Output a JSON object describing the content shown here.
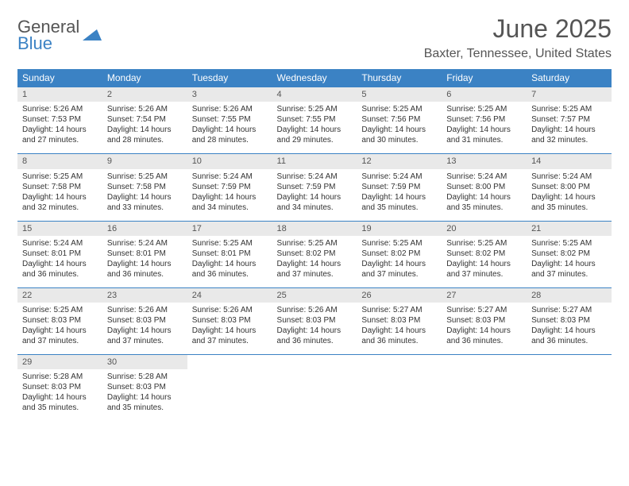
{
  "brand": {
    "line1": "General",
    "line2": "Blue",
    "color_gray": "#555555",
    "color_blue": "#3b82c4"
  },
  "title": "June 2025",
  "location": "Baxter, Tennessee, United States",
  "columns": [
    "Sunday",
    "Monday",
    "Tuesday",
    "Wednesday",
    "Thursday",
    "Friday",
    "Saturday"
  ],
  "header_bg": "#3b82c4",
  "header_fg": "#ffffff",
  "daynum_bg": "#e9e9e9",
  "border_color": "#3b82c4",
  "background_color": "#ffffff",
  "text_color": "#333333",
  "title_fontsize": 32,
  "location_fontsize": 16,
  "th_fontsize": 12,
  "cell_fontsize": 10,
  "days": [
    {
      "n": "1",
      "sunrise": "5:26 AM",
      "sunset": "7:53 PM",
      "dl": "14 hours and 27 minutes."
    },
    {
      "n": "2",
      "sunrise": "5:26 AM",
      "sunset": "7:54 PM",
      "dl": "14 hours and 28 minutes."
    },
    {
      "n": "3",
      "sunrise": "5:26 AM",
      "sunset": "7:55 PM",
      "dl": "14 hours and 28 minutes."
    },
    {
      "n": "4",
      "sunrise": "5:25 AM",
      "sunset": "7:55 PM",
      "dl": "14 hours and 29 minutes."
    },
    {
      "n": "5",
      "sunrise": "5:25 AM",
      "sunset": "7:56 PM",
      "dl": "14 hours and 30 minutes."
    },
    {
      "n": "6",
      "sunrise": "5:25 AM",
      "sunset": "7:56 PM",
      "dl": "14 hours and 31 minutes."
    },
    {
      "n": "7",
      "sunrise": "5:25 AM",
      "sunset": "7:57 PM",
      "dl": "14 hours and 32 minutes."
    },
    {
      "n": "8",
      "sunrise": "5:25 AM",
      "sunset": "7:58 PM",
      "dl": "14 hours and 32 minutes."
    },
    {
      "n": "9",
      "sunrise": "5:25 AM",
      "sunset": "7:58 PM",
      "dl": "14 hours and 33 minutes."
    },
    {
      "n": "10",
      "sunrise": "5:24 AM",
      "sunset": "7:59 PM",
      "dl": "14 hours and 34 minutes."
    },
    {
      "n": "11",
      "sunrise": "5:24 AM",
      "sunset": "7:59 PM",
      "dl": "14 hours and 34 minutes."
    },
    {
      "n": "12",
      "sunrise": "5:24 AM",
      "sunset": "7:59 PM",
      "dl": "14 hours and 35 minutes."
    },
    {
      "n": "13",
      "sunrise": "5:24 AM",
      "sunset": "8:00 PM",
      "dl": "14 hours and 35 minutes."
    },
    {
      "n": "14",
      "sunrise": "5:24 AM",
      "sunset": "8:00 PM",
      "dl": "14 hours and 35 minutes."
    },
    {
      "n": "15",
      "sunrise": "5:24 AM",
      "sunset": "8:01 PM",
      "dl": "14 hours and 36 minutes."
    },
    {
      "n": "16",
      "sunrise": "5:24 AM",
      "sunset": "8:01 PM",
      "dl": "14 hours and 36 minutes."
    },
    {
      "n": "17",
      "sunrise": "5:25 AM",
      "sunset": "8:01 PM",
      "dl": "14 hours and 36 minutes."
    },
    {
      "n": "18",
      "sunrise": "5:25 AM",
      "sunset": "8:02 PM",
      "dl": "14 hours and 37 minutes."
    },
    {
      "n": "19",
      "sunrise": "5:25 AM",
      "sunset": "8:02 PM",
      "dl": "14 hours and 37 minutes."
    },
    {
      "n": "20",
      "sunrise": "5:25 AM",
      "sunset": "8:02 PM",
      "dl": "14 hours and 37 minutes."
    },
    {
      "n": "21",
      "sunrise": "5:25 AM",
      "sunset": "8:02 PM",
      "dl": "14 hours and 37 minutes."
    },
    {
      "n": "22",
      "sunrise": "5:25 AM",
      "sunset": "8:03 PM",
      "dl": "14 hours and 37 minutes."
    },
    {
      "n": "23",
      "sunrise": "5:26 AM",
      "sunset": "8:03 PM",
      "dl": "14 hours and 37 minutes."
    },
    {
      "n": "24",
      "sunrise": "5:26 AM",
      "sunset": "8:03 PM",
      "dl": "14 hours and 37 minutes."
    },
    {
      "n": "25",
      "sunrise": "5:26 AM",
      "sunset": "8:03 PM",
      "dl": "14 hours and 36 minutes."
    },
    {
      "n": "26",
      "sunrise": "5:27 AM",
      "sunset": "8:03 PM",
      "dl": "14 hours and 36 minutes."
    },
    {
      "n": "27",
      "sunrise": "5:27 AM",
      "sunset": "8:03 PM",
      "dl": "14 hours and 36 minutes."
    },
    {
      "n": "28",
      "sunrise": "5:27 AM",
      "sunset": "8:03 PM",
      "dl": "14 hours and 36 minutes."
    },
    {
      "n": "29",
      "sunrise": "5:28 AM",
      "sunset": "8:03 PM",
      "dl": "14 hours and 35 minutes."
    },
    {
      "n": "30",
      "sunrise": "5:28 AM",
      "sunset": "8:03 PM",
      "dl": "14 hours and 35 minutes."
    }
  ],
  "labels": {
    "sunrise": "Sunrise:",
    "sunset": "Sunset:",
    "daylight": "Daylight:"
  },
  "start_offset": 0,
  "total_cells": 35
}
